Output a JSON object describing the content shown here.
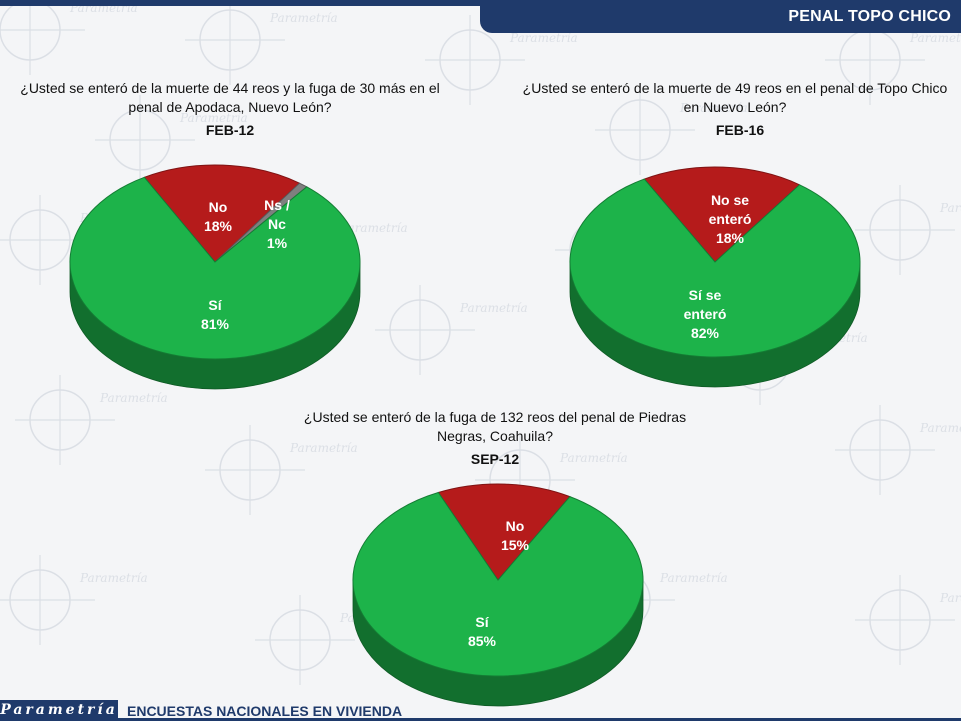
{
  "header": {
    "title": "PENAL TOPO CHICO"
  },
  "footer": {
    "logo": "Parametría",
    "text": "ENCUESTAS NACIONALES EN VIVIENDA"
  },
  "background": {
    "watermark": "Parametría"
  },
  "colors": {
    "green": "#1db34a",
    "red": "#b51b1b",
    "gray": "#7f7f7f",
    "navy": "#1f3a6b"
  },
  "chart_data": [
    {
      "type": "pie",
      "question": "¿Usted se enteró de la muerte de 44 reos y la fuga de 30 más en el penal de Apodaca, Nuevo León?",
      "period": "FEB-12",
      "slices": [
        {
          "label": "No",
          "value": 18,
          "display": "18%",
          "color": "#b51b1b"
        },
        {
          "label": "Ns / Nc",
          "value": 1,
          "display": "1%",
          "color": "#7f7f7f"
        },
        {
          "label": "Sí",
          "value": 81,
          "display": "81%",
          "color": "#1db34a"
        }
      ]
    },
    {
      "type": "pie",
      "question": "¿Usted se enteró de la muerte de 49 reos en el penal de Topo Chico en Nuevo León?",
      "period": "FEB-16",
      "slices": [
        {
          "label": "No se enteró",
          "value": 18,
          "display": "18%",
          "color": "#b51b1b"
        },
        {
          "label": "Sí se enteró",
          "value": 82,
          "display": "82%",
          "color": "#1db34a"
        }
      ]
    },
    {
      "type": "pie",
      "question": "¿Usted se enteró de la fuga de 132 reos del penal de Piedras Negras, Coahuila?",
      "period": "SEP-12",
      "slices": [
        {
          "label": "No",
          "value": 15,
          "display": "15%",
          "color": "#b51b1b"
        },
        {
          "label": "Sí",
          "value": 85,
          "display": "85%",
          "color": "#1db34a"
        }
      ]
    }
  ]
}
